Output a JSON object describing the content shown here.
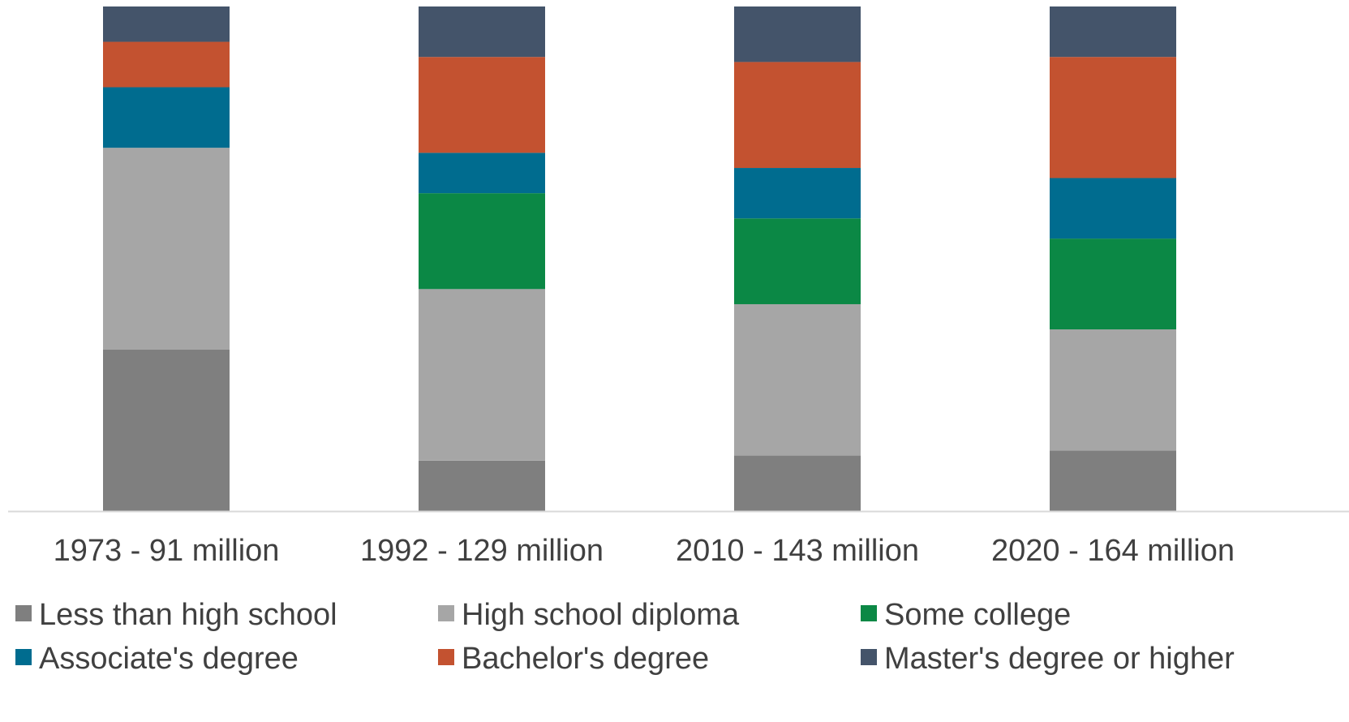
{
  "chart_data": {
    "type": "bar",
    "stacked": true,
    "normalized": true,
    "title": "",
    "xlabel": "",
    "ylabel": "",
    "ylim": [
      0,
      100
    ],
    "grid": false,
    "legend_position": "bottom",
    "categories": [
      "1973 - 91 million",
      "1992 - 129 million",
      "2010 - 143 million",
      "2020 - 164 million"
    ],
    "series": [
      {
        "name": "Less than high school",
        "color": "#7f7f7f",
        "values": [
          32,
          10,
          11,
          12
        ]
      },
      {
        "name": "High school diploma",
        "color": "#a6a6a6",
        "values": [
          40,
          34,
          30,
          24
        ]
      },
      {
        "name": "Some college",
        "color": "#0b8845",
        "values": [
          0,
          19,
          17,
          18
        ]
      },
      {
        "name": "Associate's degree",
        "color": "#006c8f",
        "values": [
          12,
          8,
          10,
          12
        ]
      },
      {
        "name": "Bachelor's degree",
        "color": "#c35230",
        "values": [
          9,
          19,
          21,
          24
        ]
      },
      {
        "name": "Master's degree or higher",
        "color": "#44546a",
        "values": [
          7,
          10,
          11,
          10
        ]
      }
    ]
  }
}
